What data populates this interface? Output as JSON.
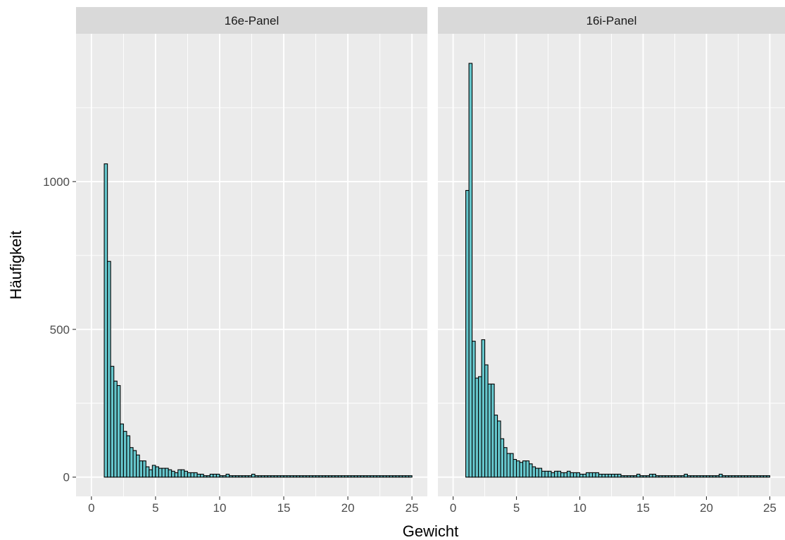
{
  "chart_data": {
    "type": "bar",
    "subtype": "faceted-histogram",
    "xlabel": "Gewicht",
    "ylabel": "Häufigkeit",
    "xlim": [
      -1.2,
      26.2
    ],
    "ylim": [
      -65,
      1500
    ],
    "x_ticks": [
      0,
      5,
      10,
      15,
      20,
      25
    ],
    "y_ticks": [
      0,
      500,
      1000
    ],
    "bin_width": 0.25,
    "grid": true,
    "legend": "none",
    "colors": {
      "bar_fill": "#66C6CC",
      "bar_stroke": "#000000",
      "panel_bg": "#EBEBEB",
      "strip_bg": "#D9D9D9",
      "grid": "#FFFFFF"
    },
    "panels": [
      {
        "name": "16e-Panel",
        "bin_start": 0.0,
        "values": [
          0,
          0,
          0,
          0,
          1060,
          730,
          375,
          325,
          310,
          180,
          155,
          140,
          100,
          90,
          75,
          55,
          55,
          35,
          25,
          40,
          35,
          30,
          30,
          30,
          25,
          20,
          15,
          25,
          25,
          20,
          15,
          15,
          15,
          10,
          10,
          5,
          5,
          10,
          10,
          10,
          5,
          5,
          10,
          5,
          5,
          5,
          5,
          5,
          5,
          5,
          10,
          5,
          5,
          5,
          5,
          5,
          5,
          5,
          5,
          5,
          5,
          5,
          5,
          5,
          5,
          5,
          5,
          5,
          5,
          5,
          5,
          5,
          5,
          5,
          5,
          5,
          5,
          5,
          5,
          5,
          5,
          5,
          5,
          5,
          5,
          5,
          5,
          5,
          5,
          5,
          5,
          5,
          5,
          5,
          5,
          5,
          5,
          5,
          5,
          5
        ]
      },
      {
        "name": "16i-Panel",
        "bin_start": 0.0,
        "values": [
          0,
          0,
          0,
          0,
          970,
          1400,
          460,
          335,
          340,
          465,
          380,
          315,
          315,
          210,
          190,
          130,
          100,
          80,
          80,
          60,
          55,
          50,
          55,
          55,
          45,
          35,
          30,
          30,
          20,
          20,
          20,
          15,
          20,
          20,
          15,
          15,
          20,
          15,
          15,
          15,
          10,
          10,
          15,
          15,
          15,
          15,
          10,
          10,
          10,
          10,
          10,
          10,
          10,
          5,
          5,
          5,
          5,
          5,
          10,
          5,
          5,
          5,
          10,
          10,
          5,
          5,
          5,
          5,
          5,
          5,
          5,
          5,
          5,
          10,
          5,
          5,
          5,
          5,
          5,
          5,
          5,
          5,
          5,
          5,
          10,
          5,
          5,
          5,
          5,
          5,
          5,
          5,
          5,
          5,
          5,
          5,
          5,
          5,
          5,
          5
        ]
      }
    ]
  }
}
